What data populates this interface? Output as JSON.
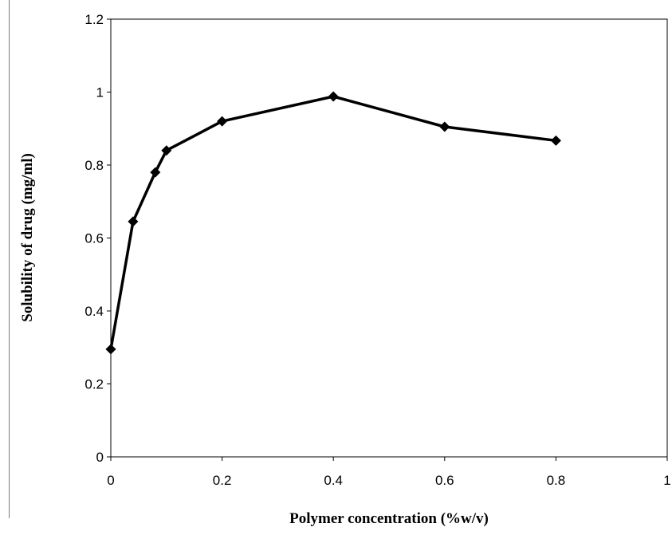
{
  "chart_data": {
    "type": "line",
    "title": "",
    "xlabel": "Polymer concentration (%w/v)",
    "ylabel": "Solubility of drug (mg/ml)",
    "xlim": [
      0,
      1
    ],
    "ylim": [
      0,
      1.2
    ],
    "x_ticks": [
      "0",
      "0.2",
      "0.4",
      "0.6",
      "0.8",
      "1"
    ],
    "y_ticks": [
      "0",
      "0.2",
      "0.4",
      "0.6",
      "0.8",
      "1",
      "1.2"
    ],
    "grid": false,
    "legend": "none",
    "series": [
      {
        "marker": "diamond",
        "color": "#000000",
        "x": [
          0,
          0.04,
          0.08,
          0.1,
          0.2,
          0.4,
          0.6,
          0.8
        ],
        "y": [
          0.295,
          0.645,
          0.78,
          0.84,
          0.92,
          0.988,
          0.905,
          0.867
        ]
      }
    ]
  }
}
